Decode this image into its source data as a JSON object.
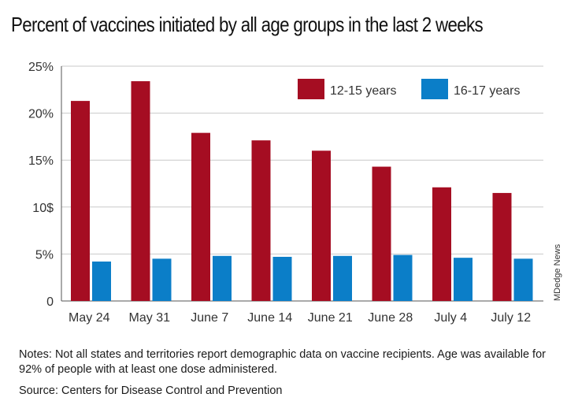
{
  "chart_data": {
    "type": "bar",
    "title": "Percent of vaccines initiated by all age groups in the last 2 weeks",
    "categories": [
      "May 24",
      "May 31",
      "June 7",
      "June 14",
      "June 21",
      "June 28",
      "July 4",
      "July 12"
    ],
    "series": [
      {
        "name": "12-15 years",
        "color": "#a50d22",
        "values": [
          21.3,
          23.4,
          17.9,
          17.1,
          16.0,
          14.3,
          12.1,
          11.5
        ]
      },
      {
        "name": "16-17 years",
        "color": "#0b7ec8",
        "values": [
          4.2,
          4.5,
          4.8,
          4.7,
          4.8,
          4.9,
          4.6,
          4.5
        ]
      }
    ],
    "yticks": [
      "0",
      "5%",
      "10$",
      "15%",
      "20%",
      "25%"
    ],
    "ytick_values": [
      0,
      5,
      10,
      15,
      20,
      25
    ],
    "ylim": [
      0,
      25
    ],
    "xlabel": "",
    "ylabel": "",
    "grid": true,
    "legend": "top-right"
  },
  "notes": {
    "label": "Notes:",
    "text": " Not all states and territories report demographic data on vaccine recipients. Age was available for 92% of people with at least one dose administered."
  },
  "source": {
    "label": "Source:",
    "text": " Centers for Disease Control and Prevention"
  },
  "credit": "MDedge News"
}
